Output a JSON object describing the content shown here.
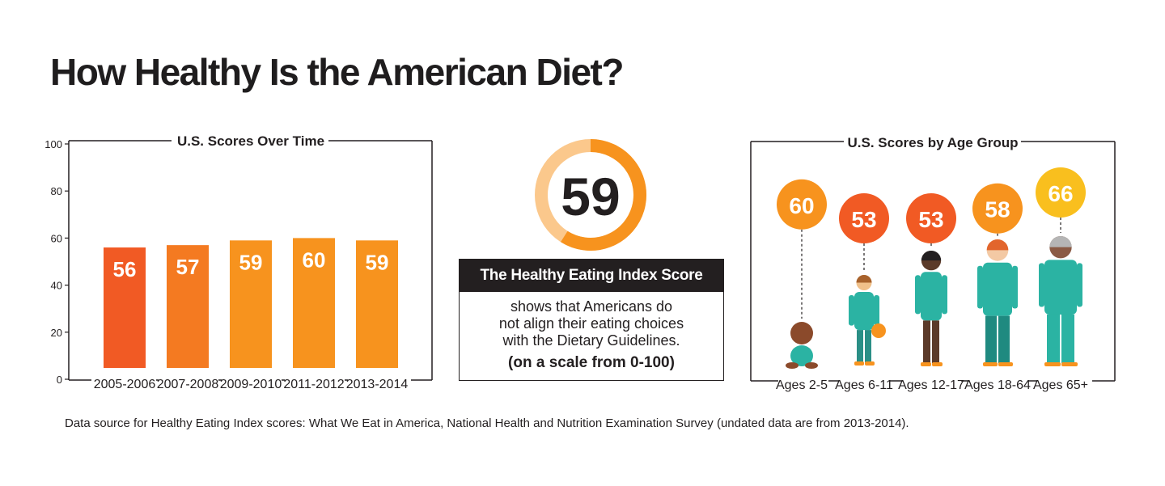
{
  "title": "How Healthy Is the American Diet?",
  "source": "Data source for Healthy Eating Index scores: What We Eat in America, National Health and Nutrition Examination Survey (undated data are from 2013-2014).",
  "center": {
    "score": "59",
    "score_value": 59,
    "heading": "The Healthy Eating Index Score",
    "body_lines": [
      "shows that Americans do",
      "not align their eating choices",
      "with the Dietary Guidelines."
    ],
    "scale_note": "(on a scale from 0-100)"
  },
  "colors": {
    "dark_orange": "#f15a24",
    "orange": "#f7931e",
    "light_orange": "#fbc88c",
    "yellow": "#f9bf1e",
    "text": "#231f20"
  },
  "chart_data": [
    {
      "type": "bar",
      "title": "U.S. Scores Over Time",
      "categories": [
        "2005-2006",
        "2007-2008",
        "2009-2010",
        "2011-2012",
        "2013-2014"
      ],
      "values": [
        56,
        57,
        59,
        60,
        59
      ],
      "ylim": [
        0,
        100
      ],
      "yticks": [
        0,
        20,
        40,
        60,
        80,
        100
      ],
      "bar_colors": [
        "#f15a24",
        "#f47a21",
        "#f7931e",
        "#f7931e",
        "#f7931e"
      ]
    },
    {
      "type": "bar",
      "title": "U.S. Scores by Age Group",
      "categories": [
        "Ages 2-5",
        "Ages 6-11",
        "Ages 12-17",
        "Ages 18-64",
        "Ages 65+"
      ],
      "values": [
        60,
        53,
        53,
        58,
        66
      ],
      "bubble_colors": [
        "#f7931e",
        "#f15a24",
        "#f15a24",
        "#f7931e",
        "#f9bf1e"
      ]
    }
  ]
}
